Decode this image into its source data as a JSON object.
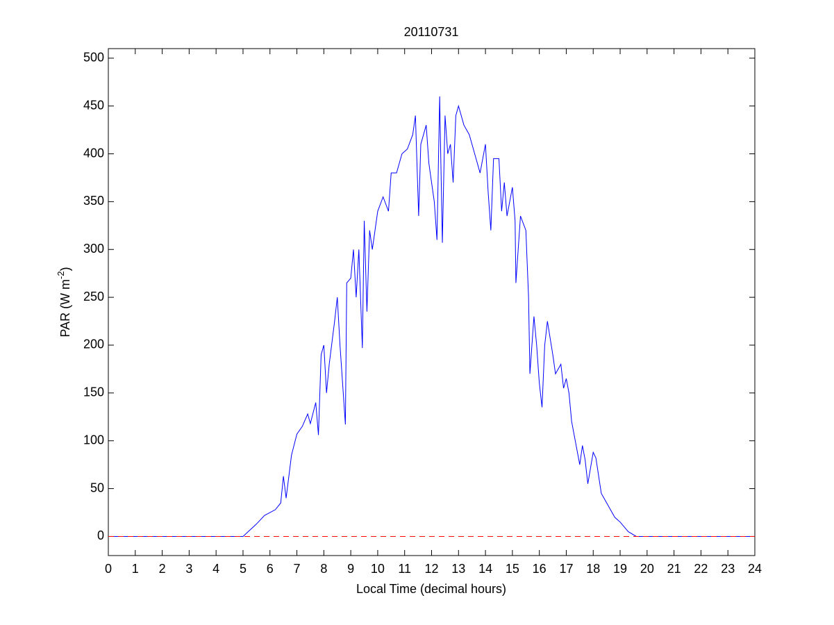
{
  "chart_data": {
    "type": "line",
    "title": "20110731",
    "xlabel": "Local Time (decimal hours)",
    "ylabel": [
      "PAR (W m",
      "-2",
      ")"
    ],
    "xlim": [
      0,
      24
    ],
    "xticks": [
      0,
      1,
      2,
      3,
      4,
      5,
      6,
      7,
      8,
      9,
      10,
      11,
      12,
      13,
      14,
      15,
      16,
      17,
      18,
      19,
      20,
      21,
      22,
      23,
      24
    ],
    "ylim": [
      -20,
      510
    ],
    "yticks": [
      0,
      50,
      100,
      150,
      200,
      250,
      300,
      350,
      400,
      450,
      500
    ],
    "series": [
      {
        "color": "#0000ff",
        "dash": false,
        "x": [
          0,
          5,
          5.5,
          5.8,
          6,
          6.2,
          6.4,
          6.5,
          6.6,
          6.8,
          7,
          7.2,
          7.4,
          7.5,
          7.7,
          7.8,
          7.9,
          8,
          8.1,
          8.2,
          8.4,
          8.5,
          8.6,
          8.8,
          8.85,
          9,
          9.1,
          9.2,
          9.3,
          9.43,
          9.5,
          9.6,
          9.7,
          9.8,
          10,
          10.2,
          10.4,
          10.5,
          10.7,
          10.9,
          11.1,
          11.3,
          11.4,
          11.52,
          11.6,
          11.8,
          11.9,
          12.1,
          12.2,
          12.3,
          12.4,
          12.5,
          12.6,
          12.7,
          12.8,
          12.9,
          13,
          13.2,
          13.4,
          13.6,
          13.8,
          14,
          14.1,
          14.2,
          14.3,
          14.5,
          14.6,
          14.7,
          14.8,
          14.9,
          15,
          15.1,
          15.13,
          15.3,
          15.5,
          15.6,
          15.65,
          15.8,
          15.9,
          16,
          16.1,
          16.2,
          16.3,
          16.5,
          16.6,
          16.8,
          16.9,
          17,
          17.1,
          17.2,
          17.4,
          17.5,
          17.6,
          17.7,
          17.8,
          18,
          18.1,
          18.3,
          18.5,
          18.8,
          19,
          19.3,
          19.6,
          20,
          24
        ],
        "values": [
          0,
          0,
          13,
          22,
          25,
          28,
          35,
          63,
          40,
          85,
          107,
          115,
          128,
          118,
          140,
          106,
          190,
          200,
          150,
          180,
          225,
          250,
          200,
          117,
          265,
          270,
          300,
          250,
          300,
          197,
          330,
          235,
          320,
          300,
          340,
          355,
          340,
          380,
          380,
          400,
          405,
          420,
          440,
          335,
          410,
          430,
          390,
          350,
          310,
          460,
          307,
          440,
          400,
          410,
          370,
          440,
          450,
          430,
          420,
          400,
          380,
          410,
          360,
          320,
          395,
          395,
          340,
          370,
          335,
          350,
          365,
          330,
          265,
          335,
          320,
          250,
          170,
          230,
          200,
          160,
          135,
          200,
          225,
          190,
          170,
          180,
          155,
          165,
          150,
          120,
          90,
          75,
          95,
          80,
          55,
          88,
          82,
          45,
          35,
          20,
          15,
          5,
          0,
          0,
          0
        ]
      },
      {
        "color": "#ff0000",
        "dash": true,
        "x": [
          0,
          24
        ],
        "values": [
          0,
          0
        ]
      }
    ]
  }
}
